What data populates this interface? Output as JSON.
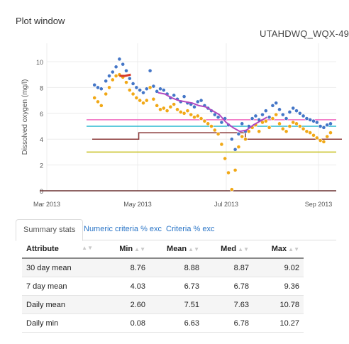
{
  "panel_title": "Plot window",
  "plot_title": "UTAHDWQ_WQX-49",
  "tabs": [
    "Summary stats",
    "Numeric criteria % exc",
    "Criteria % exc"
  ],
  "table": {
    "headers": [
      "Attribute",
      "Min",
      "Mean",
      "Med",
      "Max"
    ],
    "rows": [
      [
        "30 day mean",
        "8.76",
        "8.88",
        "8.87",
        "9.02"
      ],
      [
        "7 day mean",
        "4.03",
        "6.73",
        "6.78",
        "9.36"
      ],
      [
        "Daily mean",
        "2.60",
        "7.51",
        "7.63",
        "10.78"
      ],
      [
        "Daily min",
        "0.08",
        "6.63",
        "6.78",
        "10.27"
      ]
    ]
  },
  "colors": {
    "blue_points": "#3a6fc4",
    "orange_points": "#f0a30a",
    "purple_line": "#b048c0",
    "red_segment": "#d83a2a",
    "pink_line": "#f06cc0",
    "cyan_line": "#2bb8d0",
    "brown_line": "#8b3a3a",
    "olive_line": "#c8c020",
    "dark_line": "#6a3030"
  },
  "chart_data": {
    "type": "scatter",
    "ylabel": "Dissolved oxygen (mg/l)",
    "y_ticks": [
      "0",
      "2",
      "4",
      "6",
      "8",
      "10"
    ],
    "x_ticks": [
      "Mar 2013",
      "May 2013",
      "Jul 2013",
      "Sep 2013"
    ],
    "ylim": [
      0,
      11
    ],
    "grid": true,
    "series": [
      {
        "style": "points-blue",
        "x": [
          42,
          45,
          48,
          52,
          55,
          58,
          61,
          64,
          67,
          70,
          73,
          76,
          79,
          82,
          85,
          88,
          91,
          94,
          97,
          100,
          103,
          106,
          109,
          112,
          115,
          118,
          121,
          124,
          127,
          130,
          133,
          136,
          139,
          142,
          145,
          148,
          151,
          154,
          157,
          160,
          163,
          166,
          169,
          172,
          175,
          178,
          181,
          184,
          187,
          190,
          193,
          196,
          199,
          202,
          205,
          208,
          211,
          214,
          217,
          220,
          223,
          226,
          229,
          232,
          235,
          238,
          241,
          244,
          247,
          250
        ],
        "y": [
          8.2,
          8.0,
          7.9,
          8.5,
          8.9,
          9.2,
          9.6,
          10.2,
          9.8,
          9.3,
          8.7,
          8.3,
          8.0,
          7.8,
          7.6,
          7.9,
          9.3,
          8.1,
          7.7,
          7.9,
          7.8,
          7.5,
          7.2,
          7.4,
          7.1,
          6.9,
          7.3,
          6.8,
          6.7,
          6.5,
          6.9,
          7.0,
          6.6,
          6.4,
          6.2,
          5.9,
          5.7,
          5.3,
          5.6,
          5.1,
          4.0,
          3.2,
          4.4,
          5.2,
          4.6,
          5.0,
          5.6,
          5.8,
          5.5,
          5.9,
          6.2,
          5.7,
          6.6,
          6.8,
          6.3,
          5.9,
          5.6,
          6.1,
          6.4,
          6.2,
          6.0,
          5.8,
          5.6,
          5.5,
          5.4,
          5.3,
          5.0,
          4.9,
          5.1,
          5.2
        ]
      },
      {
        "style": "points-orange",
        "x": [
          42,
          45,
          48,
          52,
          55,
          58,
          61,
          64,
          67,
          70,
          73,
          76,
          79,
          82,
          85,
          88,
          91,
          94,
          97,
          100,
          103,
          106,
          109,
          112,
          115,
          118,
          121,
          124,
          127,
          130,
          133,
          136,
          139,
          142,
          145,
          148,
          151,
          154,
          157,
          160,
          163,
          166,
          169,
          172,
          175,
          178,
          181,
          184,
          187,
          190,
          193,
          196,
          199,
          202,
          205,
          208,
          211,
          214,
          217,
          220,
          223,
          226,
          229,
          232,
          235,
          238,
          241,
          244,
          247,
          250
        ],
        "y": [
          7.2,
          6.9,
          6.6,
          7.5,
          8.0,
          8.6,
          8.9,
          9.0,
          8.8,
          8.4,
          7.8,
          7.5,
          7.2,
          7.0,
          6.8,
          7.0,
          8.0,
          7.1,
          6.6,
          6.3,
          6.4,
          6.2,
          6.5,
          6.7,
          6.3,
          6.1,
          6.0,
          6.2,
          5.9,
          5.7,
          5.8,
          5.6,
          5.4,
          5.2,
          5.0,
          4.7,
          4.4,
          3.6,
          2.5,
          1.4,
          0.1,
          1.6,
          3.4,
          4.2,
          4.0,
          4.6,
          4.9,
          5.1,
          4.6,
          5.3,
          5.4,
          4.9,
          5.6,
          5.9,
          5.2,
          4.8,
          4.6,
          5.0,
          5.3,
          5.2,
          5.0,
          4.8,
          4.6,
          4.5,
          4.3,
          4.1,
          3.9,
          3.8,
          4.2,
          4.5
        ]
      },
      {
        "style": "line-purple",
        "x": [
          98,
          104,
          110,
          116,
          122,
          128,
          134,
          140,
          146,
          152,
          158,
          164,
          170,
          176,
          182,
          188,
          194
        ],
        "y": [
          7.6,
          7.5,
          7.2,
          7.0,
          6.9,
          6.8,
          6.6,
          6.5,
          6.2,
          5.9,
          5.3,
          4.9,
          4.6,
          4.7,
          5.1,
          5.4,
          5.7
        ]
      },
      {
        "style": "line-red",
        "x": [
          64,
          69,
          74
        ],
        "y": [
          8.9,
          8.9,
          9.0
        ]
      },
      {
        "style": "hline-pink",
        "y": 5.5
      },
      {
        "style": "hline-cyan",
        "y": 5.0
      },
      {
        "style": "hline-olive",
        "y": 3.0
      },
      {
        "style": "hline-dark",
        "y": 0.0
      },
      {
        "style": "step-brown",
        "x": [
          40,
          81,
          81,
          175,
          175,
          260
        ],
        "y": [
          4.0,
          4.0,
          4.5,
          4.5,
          4.0,
          4.0
        ]
      }
    ]
  }
}
